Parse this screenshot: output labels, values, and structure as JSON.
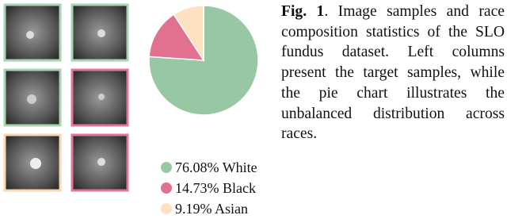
{
  "chart_data": {
    "type": "pie",
    "categories": [
      "White",
      "Black",
      "Asian"
    ],
    "values": [
      76.08,
      14.73,
      9.19
    ],
    "value_labels": [
      "76.08%",
      "14.73%",
      "9.19%"
    ],
    "colors": [
      "#98c8a3",
      "#e2708f",
      "#fde1c3"
    ]
  },
  "caption": {
    "label": "Fig. 1",
    "text": ". Image samples and race composition statistics of the SLO fundus dataset. Left columns present the target samples, while the pie chart illustrates the unbalanced distribution across races."
  }
}
